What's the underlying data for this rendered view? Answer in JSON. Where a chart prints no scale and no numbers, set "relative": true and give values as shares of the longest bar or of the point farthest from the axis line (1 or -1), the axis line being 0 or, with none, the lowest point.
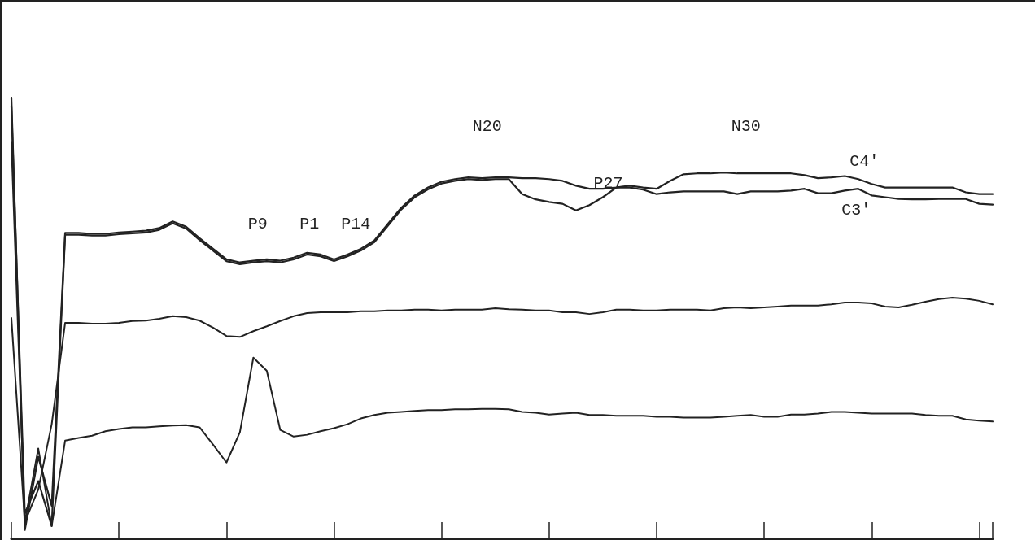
{
  "chart_data": {
    "type": "line",
    "relative": true,
    "categories": [
      null,
      null,
      null,
      null,
      null,
      null,
      null,
      null,
      null,
      null,
      null,
      null,
      null,
      null,
      null,
      null,
      null,
      null,
      null,
      null,
      null,
      null,
      null,
      null,
      null,
      null,
      null,
      null,
      null,
      null,
      null,
      null,
      null,
      null,
      null,
      null,
      null,
      null,
      null,
      null,
      null,
      null,
      null,
      null,
      null,
      null,
      null,
      null,
      null,
      null,
      null,
      null,
      null,
      null,
      null,
      null,
      null,
      null,
      null,
      null,
      null,
      null,
      null,
      null,
      null,
      null,
      null,
      null,
      null,
      null,
      null,
      null,
      null,
      null
    ],
    "series": [
      {
        "name": "C4'",
        "color": "#222222",
        "values": [
          1.0,
          0.019,
          0.185,
          0.074,
          0.693,
          0.693,
          0.691,
          0.691,
          0.694,
          0.696,
          0.698,
          0.704,
          0.719,
          0.707,
          0.681,
          0.657,
          0.633,
          0.626,
          0.63,
          0.633,
          0.63,
          0.637,
          0.648,
          0.644,
          0.633,
          0.644,
          0.657,
          0.676,
          0.713,
          0.75,
          0.778,
          0.796,
          0.809,
          0.815,
          0.819,
          0.817,
          0.819,
          0.819,
          0.817,
          0.817,
          0.815,
          0.811,
          0.8,
          0.793,
          0.793,
          0.796,
          0.8,
          0.796,
          0.793,
          0.811,
          0.826,
          0.828,
          0.828,
          0.83,
          0.828,
          0.828,
          0.828,
          0.828,
          0.828,
          0.824,
          0.817,
          0.819,
          0.822,
          0.815,
          0.804,
          0.796,
          0.796,
          0.796,
          0.796,
          0.796,
          0.796,
          0.785,
          0.781,
          0.781
        ]
      },
      {
        "name": "C3'",
        "color": "#222222",
        "values": [
          0.981,
          0.056,
          0.13,
          0.028,
          0.689,
          0.689,
          0.687,
          0.687,
          0.69,
          0.692,
          0.694,
          0.7,
          0.715,
          0.703,
          0.677,
          0.653,
          0.629,
          0.622,
          0.626,
          0.629,
          0.626,
          0.633,
          0.644,
          0.64,
          0.629,
          0.64,
          0.653,
          0.672,
          0.709,
          0.746,
          0.774,
          0.792,
          0.805,
          0.811,
          0.815,
          0.813,
          0.815,
          0.815,
          0.781,
          0.769,
          0.763,
          0.759,
          0.744,
          0.756,
          0.774,
          0.796,
          0.796,
          0.791,
          0.781,
          0.785,
          0.787,
          0.787,
          0.787,
          0.787,
          0.781,
          0.787,
          0.787,
          0.787,
          0.789,
          0.793,
          0.783,
          0.783,
          0.789,
          0.793,
          0.778,
          0.774,
          0.77,
          0.769,
          0.769,
          0.77,
          0.77,
          0.77,
          0.759,
          0.757
        ]
      },
      {
        "color": "#222222",
        "values": [
          0.9,
          0.037,
          0.111,
          0.259,
          0.489,
          0.489,
          0.487,
          0.487,
          0.489,
          0.493,
          0.494,
          0.498,
          0.504,
          0.502,
          0.494,
          0.478,
          0.459,
          0.457,
          0.47,
          0.481,
          0.493,
          0.504,
          0.511,
          0.513,
          0.513,
          0.513,
          0.515,
          0.515,
          0.517,
          0.517,
          0.519,
          0.519,
          0.517,
          0.519,
          0.519,
          0.519,
          0.522,
          0.52,
          0.519,
          0.517,
          0.517,
          0.513,
          0.513,
          0.509,
          0.513,
          0.519,
          0.519,
          0.517,
          0.517,
          0.519,
          0.519,
          0.519,
          0.517,
          0.522,
          0.524,
          0.522,
          0.524,
          0.526,
          0.528,
          0.528,
          0.528,
          0.531,
          0.535,
          0.535,
          0.533,
          0.526,
          0.524,
          0.53,
          0.537,
          0.543,
          0.546,
          0.544,
          0.539,
          0.531
        ]
      },
      {
        "color": "#222222",
        "values": [
          0.5,
          0.037,
          0.204,
          0.028,
          0.222,
          0.228,
          0.233,
          0.243,
          0.248,
          0.252,
          0.252,
          0.254,
          0.256,
          0.257,
          0.252,
          0.213,
          0.172,
          0.241,
          0.41,
          0.38,
          0.246,
          0.231,
          0.235,
          0.243,
          0.25,
          0.259,
          0.272,
          0.28,
          0.285,
          0.287,
          0.289,
          0.291,
          0.291,
          0.293,
          0.293,
          0.294,
          0.294,
          0.293,
          0.287,
          0.285,
          0.281,
          0.283,
          0.285,
          0.28,
          0.28,
          0.278,
          0.278,
          0.278,
          0.276,
          0.276,
          0.274,
          0.274,
          0.274,
          0.276,
          0.278,
          0.28,
          0.276,
          0.276,
          0.281,
          0.281,
          0.283,
          0.287,
          0.287,
          0.285,
          0.283,
          0.283,
          0.283,
          0.283,
          0.28,
          0.278,
          0.278,
          0.27,
          0.267,
          0.265
        ]
      }
    ],
    "annotations": [
      "P9",
      "P1",
      "P14",
      "N20",
      "P27",
      "N30"
    ],
    "grid": false,
    "legend": false,
    "marker": "none",
    "line_style": "solid"
  }
}
